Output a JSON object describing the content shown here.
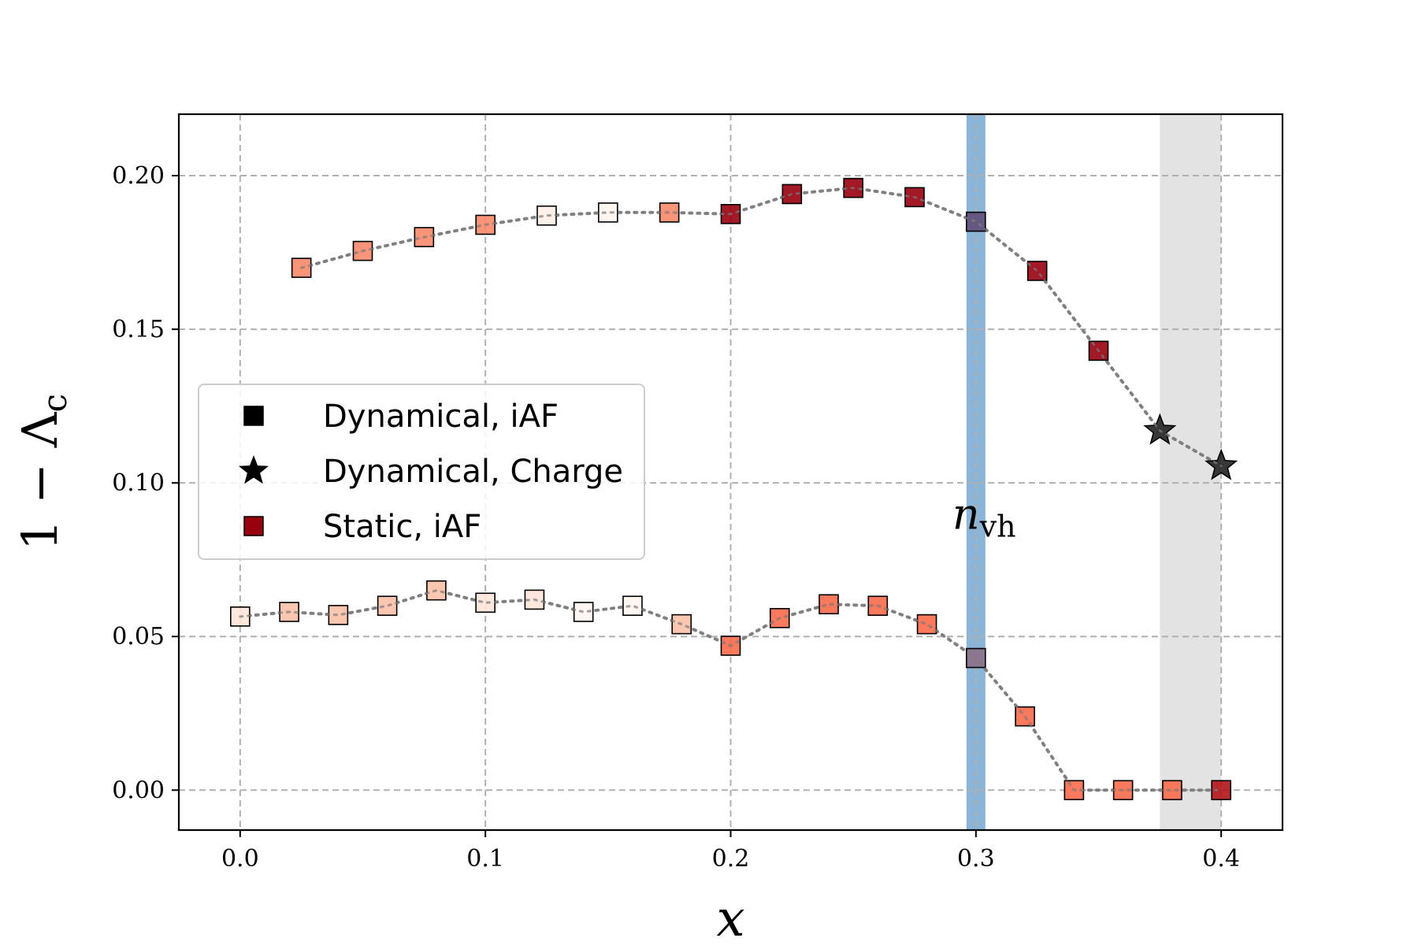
{
  "chart_data": {
    "type": "scatter",
    "xlabel": "x",
    "ylabel": "1 − Λ",
    "ylabel_subscript": "c",
    "xlim": [
      -0.025,
      0.425
    ],
    "ylim": [
      -0.013,
      0.22
    ],
    "grid": true,
    "legend_position": "center-left",
    "x_ticks": [
      0.0,
      0.1,
      0.2,
      0.3,
      0.4
    ],
    "x_tick_labels": [
      "0.0",
      "0.1",
      "0.2",
      "0.3",
      "0.4"
    ],
    "y_ticks": [
      0.0,
      0.05,
      0.1,
      0.15,
      0.2
    ],
    "y_tick_labels": [
      "0.00",
      "0.05",
      "0.10",
      "0.15",
      "0.20"
    ],
    "annotations": [
      {
        "text": "n",
        "subscript": "vh",
        "x": 0.3,
        "y": 0.085
      }
    ],
    "vertical_band": {
      "x": 0.3,
      "color": "#8ab4d8"
    },
    "shaded_region": {
      "x_from": 0.375,
      "x_to": 0.4,
      "color": "#e3e3e3"
    },
    "legend": [
      {
        "label": "Dynamical, iAF",
        "marker": "square",
        "color": "#000000"
      },
      {
        "label": "Dynamical, Charge",
        "marker": "star",
        "color": "#000000"
      },
      {
        "label": "Static, iAF",
        "marker": "square",
        "color": "#99000d"
      }
    ],
    "series": [
      {
        "line_color": "#808080",
        "points": [
          {
            "x": 0.025,
            "y": 0.17,
            "marker": "square",
            "color": "#fb8a6a"
          },
          {
            "x": 0.05,
            "y": 0.1755,
            "marker": "square",
            "color": "#fb8a6a"
          },
          {
            "x": 0.075,
            "y": 0.18,
            "marker": "square",
            "color": "#fb8a6a"
          },
          {
            "x": 0.1,
            "y": 0.184,
            "marker": "square",
            "color": "#fb8a6a"
          },
          {
            "x": 0.125,
            "y": 0.187,
            "marker": "square",
            "color": "#fff0e8"
          },
          {
            "x": 0.15,
            "y": 0.188,
            "marker": "square",
            "color": "#fff5f0"
          },
          {
            "x": 0.175,
            "y": 0.188,
            "marker": "square",
            "color": "#fb8a6a"
          },
          {
            "x": 0.2,
            "y": 0.1875,
            "marker": "square",
            "color": "#99000d"
          },
          {
            "x": 0.225,
            "y": 0.194,
            "marker": "square",
            "color": "#99000d"
          },
          {
            "x": 0.25,
            "y": 0.196,
            "marker": "square",
            "color": "#99000d"
          },
          {
            "x": 0.275,
            "y": 0.193,
            "marker": "square",
            "color": "#99000d"
          },
          {
            "x": 0.3,
            "y": 0.185,
            "marker": "square",
            "color": "#5e4f7a"
          },
          {
            "x": 0.325,
            "y": 0.169,
            "marker": "square",
            "color": "#99000d"
          },
          {
            "x": 0.35,
            "y": 0.143,
            "marker": "square",
            "color": "#99000d"
          },
          {
            "x": 0.375,
            "y": 0.117,
            "marker": "star",
            "color": "#222222"
          },
          {
            "x": 0.4,
            "y": 0.1055,
            "marker": "star",
            "color": "#222222"
          }
        ]
      },
      {
        "line_color": "#808080",
        "points": [
          {
            "x": 0.0,
            "y": 0.0565,
            "marker": "square",
            "color": "#fee5d9"
          },
          {
            "x": 0.02,
            "y": 0.058,
            "marker": "square",
            "color": "#fcc1a8"
          },
          {
            "x": 0.04,
            "y": 0.057,
            "marker": "square",
            "color": "#fcc1a8"
          },
          {
            "x": 0.06,
            "y": 0.06,
            "marker": "square",
            "color": "#fcc1a8"
          },
          {
            "x": 0.08,
            "y": 0.065,
            "marker": "square",
            "color": "#fcc1a8"
          },
          {
            "x": 0.1,
            "y": 0.061,
            "marker": "square",
            "color": "#fee5d9"
          },
          {
            "x": 0.12,
            "y": 0.062,
            "marker": "square",
            "color": "#fee5d9"
          },
          {
            "x": 0.14,
            "y": 0.058,
            "marker": "square",
            "color": "#fff5f0"
          },
          {
            "x": 0.16,
            "y": 0.06,
            "marker": "square",
            "color": "#fff5f0"
          },
          {
            "x": 0.18,
            "y": 0.054,
            "marker": "square",
            "color": "#fcc1a8"
          },
          {
            "x": 0.2,
            "y": 0.047,
            "marker": "square",
            "color": "#fb6a4a"
          },
          {
            "x": 0.22,
            "y": 0.056,
            "marker": "square",
            "color": "#fb6a4a"
          },
          {
            "x": 0.24,
            "y": 0.0605,
            "marker": "square",
            "color": "#fb6a4a"
          },
          {
            "x": 0.26,
            "y": 0.06,
            "marker": "square",
            "color": "#fb6a4a"
          },
          {
            "x": 0.28,
            "y": 0.054,
            "marker": "square",
            "color": "#fb6a4a"
          },
          {
            "x": 0.3,
            "y": 0.043,
            "marker": "square",
            "color": "#8c7088"
          },
          {
            "x": 0.32,
            "y": 0.024,
            "marker": "square",
            "color": "#fb6a4a"
          },
          {
            "x": 0.34,
            "y": 0.0,
            "marker": "square",
            "color": "#fb6a4a"
          },
          {
            "x": 0.36,
            "y": 0.0,
            "marker": "square",
            "color": "#fb6a4a"
          },
          {
            "x": 0.38,
            "y": 0.0,
            "marker": "square",
            "color": "#fb6a4a"
          },
          {
            "x": 0.4,
            "y": 0.0,
            "marker": "square",
            "color": "#b31417"
          }
        ]
      }
    ]
  }
}
